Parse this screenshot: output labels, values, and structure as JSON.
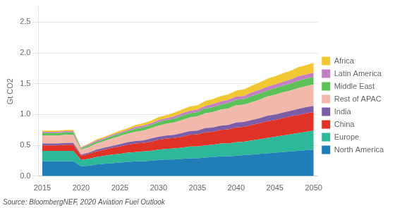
{
  "chart_data": {
    "type": "area",
    "stacked": true,
    "ylabel": "Gt CO2",
    "annotation": "Source: BloombergNEF, 2020 Aviation Fuel Outlook",
    "x": [
      2015,
      2016,
      2017,
      2018,
      2019,
      2020,
      2021,
      2022,
      2023,
      2024,
      2025,
      2026,
      2027,
      2028,
      2029,
      2030,
      2031,
      2032,
      2033,
      2034,
      2035,
      2036,
      2037,
      2038,
      2039,
      2040,
      2041,
      2042,
      2043,
      2044,
      2045,
      2046,
      2047,
      2048,
      2049,
      2050
    ],
    "series": [
      {
        "name": "North America",
        "color": "#1f7db8",
        "values": [
          0.24,
          0.24,
          0.24,
          0.24,
          0.24,
          0.16,
          0.17,
          0.19,
          0.2,
          0.21,
          0.22,
          0.23,
          0.24,
          0.24,
          0.25,
          0.26,
          0.27,
          0.27,
          0.28,
          0.29,
          0.29,
          0.3,
          0.31,
          0.32,
          0.32,
          0.33,
          0.34,
          0.35,
          0.36,
          0.37,
          0.38,
          0.39,
          0.4,
          0.41,
          0.42,
          0.43
        ]
      },
      {
        "name": "Europe",
        "color": "#2db89a",
        "values": [
          0.17,
          0.17,
          0.17,
          0.17,
          0.17,
          0.1,
          0.11,
          0.12,
          0.13,
          0.14,
          0.14,
          0.15,
          0.15,
          0.16,
          0.16,
          0.17,
          0.17,
          0.18,
          0.18,
          0.19,
          0.19,
          0.2,
          0.2,
          0.21,
          0.21,
          0.22,
          0.22,
          0.23,
          0.24,
          0.25,
          0.26,
          0.27,
          0.28,
          0.29,
          0.3,
          0.31
        ]
      },
      {
        "name": "China",
        "color": "#e03226",
        "values": [
          0.09,
          0.09,
          0.09,
          0.1,
          0.1,
          0.07,
          0.08,
          0.09,
          0.1,
          0.11,
          0.12,
          0.13,
          0.14,
          0.14,
          0.15,
          0.16,
          0.17,
          0.17,
          0.18,
          0.19,
          0.2,
          0.21,
          0.21,
          0.22,
          0.23,
          0.24,
          0.24,
          0.25,
          0.26,
          0.27,
          0.27,
          0.28,
          0.29,
          0.29,
          0.3,
          0.3
        ]
      },
      {
        "name": "India",
        "color": "#7b5ea7",
        "values": [
          0.03,
          0.03,
          0.03,
          0.03,
          0.03,
          0.02,
          0.02,
          0.03,
          0.03,
          0.03,
          0.04,
          0.04,
          0.04,
          0.04,
          0.05,
          0.05,
          0.05,
          0.05,
          0.06,
          0.06,
          0.06,
          0.07,
          0.07,
          0.07,
          0.07,
          0.08,
          0.08,
          0.08,
          0.08,
          0.09,
          0.09,
          0.09,
          0.09,
          0.1,
          0.1,
          0.1
        ]
      },
      {
        "name": "Rest of APAC",
        "color": "#f2b8aa",
        "values": [
          0.13,
          0.13,
          0.13,
          0.13,
          0.13,
          0.08,
          0.09,
          0.1,
          0.11,
          0.12,
          0.13,
          0.14,
          0.15,
          0.16,
          0.17,
          0.18,
          0.19,
          0.2,
          0.21,
          0.22,
          0.23,
          0.24,
          0.25,
          0.26,
          0.27,
          0.28,
          0.28,
          0.29,
          0.3,
          0.31,
          0.32,
          0.33,
          0.33,
          0.34,
          0.34,
          0.35
        ]
      },
      {
        "name": "Middle East",
        "color": "#5dc15a",
        "values": [
          0.04,
          0.04,
          0.04,
          0.04,
          0.04,
          0.02,
          0.03,
          0.03,
          0.03,
          0.04,
          0.04,
          0.04,
          0.05,
          0.05,
          0.05,
          0.06,
          0.06,
          0.06,
          0.07,
          0.07,
          0.07,
          0.08,
          0.08,
          0.08,
          0.09,
          0.09,
          0.09,
          0.1,
          0.1,
          0.1,
          0.11,
          0.11,
          0.11,
          0.12,
          0.12,
          0.12
        ]
      },
      {
        "name": "Latin America",
        "color": "#c47fc4",
        "values": [
          0.02,
          0.02,
          0.02,
          0.02,
          0.02,
          0.01,
          0.02,
          0.02,
          0.02,
          0.02,
          0.02,
          0.02,
          0.03,
          0.03,
          0.03,
          0.03,
          0.03,
          0.04,
          0.04,
          0.04,
          0.04,
          0.04,
          0.05,
          0.05,
          0.05,
          0.05,
          0.05,
          0.06,
          0.06,
          0.06,
          0.06,
          0.06,
          0.07,
          0.07,
          0.07,
          0.07
        ]
      },
      {
        "name": "Africa",
        "color": "#f2c832",
        "values": [
          0.02,
          0.02,
          0.02,
          0.02,
          0.02,
          0.01,
          0.01,
          0.02,
          0.02,
          0.02,
          0.03,
          0.03,
          0.03,
          0.04,
          0.04,
          0.05,
          0.05,
          0.06,
          0.06,
          0.07,
          0.07,
          0.08,
          0.08,
          0.09,
          0.09,
          0.1,
          0.11,
          0.11,
          0.12,
          0.13,
          0.13,
          0.14,
          0.14,
          0.15,
          0.15,
          0.16
        ]
      }
    ],
    "xlim": [
      2014.5,
      2050.5
    ],
    "xticks": [
      2015,
      2020,
      2025,
      2030,
      2035,
      2040,
      2045,
      2050
    ],
    "ylim": [
      0,
      2.75
    ],
    "yticks": [
      {
        "value": 0.0,
        "label": "0.0"
      },
      {
        "value": 0.5,
        "label": "0.5"
      },
      {
        "value": 1.0,
        "label": "1.0"
      },
      {
        "value": 1.5,
        "label": "1.5"
      },
      {
        "value": 2.0,
        "label": "2.0"
      },
      {
        "value": 2.5,
        "label": "2.5"
      }
    ],
    "grid": "y",
    "legend": "right"
  }
}
